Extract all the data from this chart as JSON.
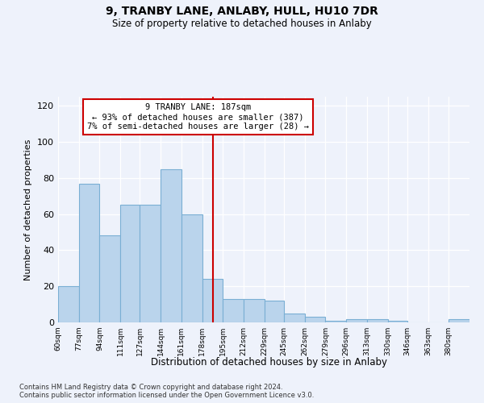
{
  "title": "9, TRANBY LANE, ANLABY, HULL, HU10 7DR",
  "subtitle": "Size of property relative to detached houses in Anlaby",
  "xlabel": "Distribution of detached houses by size in Anlaby",
  "ylabel": "Number of detached properties",
  "bar_color": "#bad4ec",
  "bar_edge_color": "#7aafd4",
  "background_color": "#eef2fb",
  "vline_x": 187,
  "vline_color": "#cc0000",
  "annotation_text": "9 TRANBY LANE: 187sqm\n← 93% of detached houses are smaller (387)\n7% of semi-detached houses are larger (28) →",
  "annotation_box_color": "#cc0000",
  "bins": [
    60,
    77,
    94,
    111,
    127,
    144,
    161,
    178,
    195,
    212,
    229,
    245,
    262,
    279,
    296,
    313,
    330,
    346,
    363,
    380,
    397
  ],
  "counts": [
    20,
    77,
    48,
    65,
    65,
    85,
    60,
    24,
    13,
    13,
    12,
    5,
    3,
    1,
    2,
    2,
    1,
    0,
    0,
    2
  ],
  "ylim": [
    0,
    125
  ],
  "yticks": [
    0,
    20,
    40,
    60,
    80,
    100,
    120
  ],
  "footnote": "Contains HM Land Registry data © Crown copyright and database right 2024.\nContains public sector information licensed under the Open Government Licence v3.0."
}
